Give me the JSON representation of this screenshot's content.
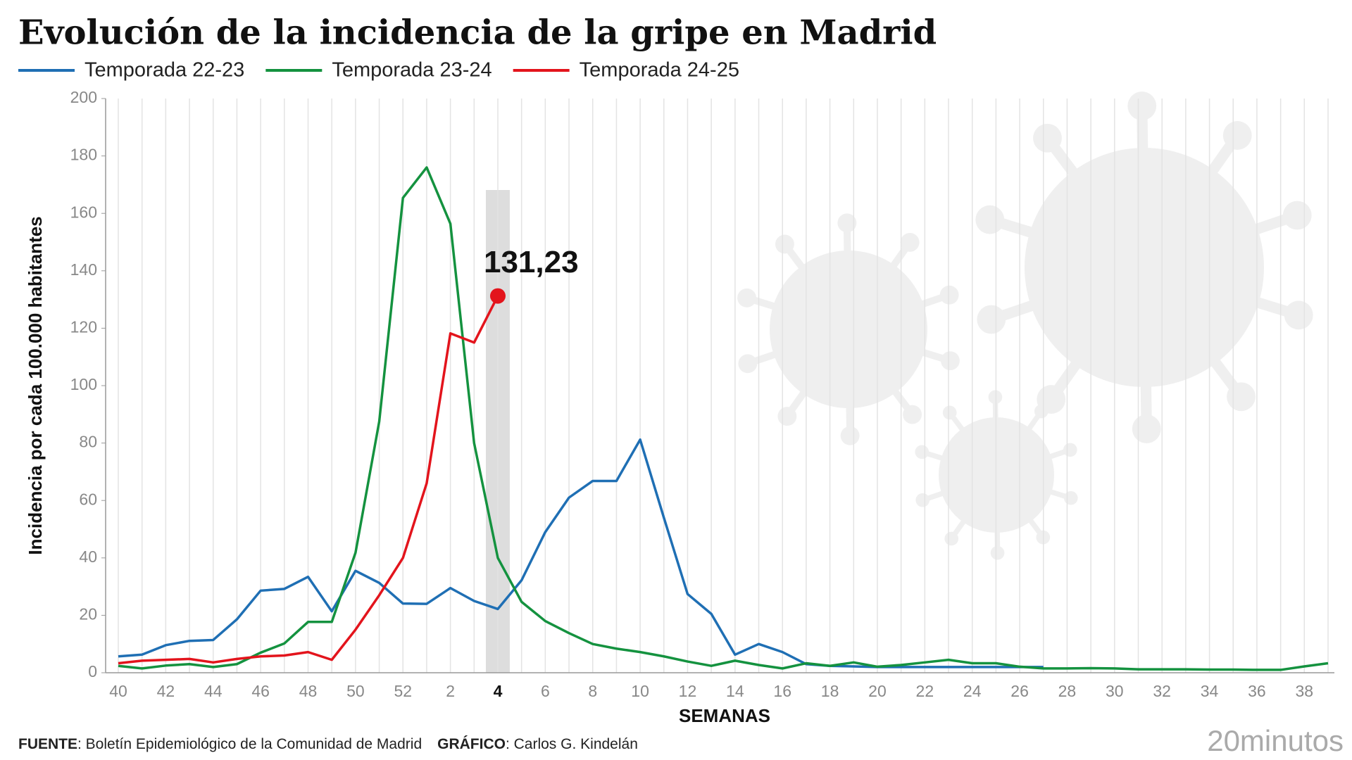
{
  "chart_data": {
    "type": "line",
    "title": "Evolución de la incidencia de la gripe en Madrid",
    "x_label": "SEMANAS",
    "y_label": "Incidencia por cada 100.000 habitantes",
    "categories": [
      "40",
      null,
      "42",
      null,
      "44",
      null,
      "46",
      null,
      "48",
      null,
      "50",
      null,
      "52",
      null,
      "2",
      null,
      "4",
      null,
      "6",
      null,
      "8",
      null,
      "10",
      null,
      "12",
      null,
      "14",
      null,
      "16",
      null,
      "18",
      null,
      "20",
      null,
      "22",
      null,
      "24",
      null,
      "26",
      null,
      "28",
      null,
      "30",
      null,
      "32",
      null,
      "34",
      null,
      "36",
      null,
      "38",
      null
    ],
    "series": [
      {
        "name": "Temporada 22-23",
        "color": "#1f6fb4",
        "values": [
          5.7,
          6.3,
          9.6,
          11.1,
          11.4,
          18.6,
          28.6,
          29.2,
          33.4,
          21.4,
          35.5,
          31.3,
          24.1,
          24,
          29.5,
          25,
          22.2,
          32.2,
          49,
          61,
          66.8,
          66.8,
          81.2,
          54,
          27.4,
          20.5,
          6.3,
          10,
          7.2,
          3,
          2.4,
          2.2,
          2,
          2,
          2,
          2,
          2,
          2,
          2,
          2,
          null,
          null,
          null,
          null,
          null,
          null,
          null,
          null,
          null,
          null,
          null,
          null
        ]
      },
      {
        "name": "Temporada 23-24",
        "color": "#14923f",
        "values": [
          2.4,
          1.5,
          2.5,
          3,
          2,
          3,
          7,
          10.2,
          17.7,
          17.7,
          41.8,
          87.5,
          165.4,
          176,
          156.4,
          80,
          40,
          24.7,
          18,
          13.8,
          10,
          8.4,
          7.2,
          5.7,
          3.9,
          2.4,
          4.2,
          2.7,
          1.5,
          3.3,
          2.4,
          3.6,
          2.1,
          2.7,
          3.6,
          4.5,
          3.3,
          3.3,
          2.1,
          1.5,
          1.5,
          1.6,
          1.5,
          1.2,
          1.2,
          1.2,
          1.1,
          1.1,
          1,
          1,
          2.2,
          3.3
        ]
      },
      {
        "name": "Temporada 24-25",
        "color": "#e3141c",
        "values": [
          3.3,
          4.2,
          4.5,
          4.8,
          3.6,
          4.8,
          5.7,
          6,
          7.2,
          4.5,
          15,
          27,
          40,
          66,
          118.2,
          115,
          131.23,
          null,
          null,
          null,
          null,
          null,
          null,
          null,
          null,
          null,
          null,
          null,
          null,
          null,
          null,
          null,
          null,
          null,
          null,
          null,
          null,
          null,
          null,
          null,
          null,
          null,
          null,
          null,
          null,
          null,
          null,
          null,
          null,
          null,
          null,
          null
        ],
        "value_labels": [
          null,
          null,
          null,
          null,
          null,
          null,
          null,
          null,
          null,
          null,
          null,
          null,
          null,
          null,
          null,
          null,
          "131,23",
          null,
          null,
          null,
          null,
          null,
          null,
          null,
          null,
          null,
          null,
          null,
          null,
          null,
          null,
          null,
          null,
          null,
          null,
          null,
          null,
          null,
          null,
          null,
          null,
          null,
          null,
          null,
          null,
          null,
          null,
          null,
          null,
          null,
          null,
          null
        ]
      }
    ],
    "ylim": [
      0,
      200
    ],
    "yticks": [
      0,
      20,
      40,
      60,
      80,
      100,
      120,
      140,
      160,
      180,
      200
    ],
    "grid": true,
    "source_label": "FUENTE",
    "source": ": Boletín Epidemiológico de la Comunidad de Madrid",
    "credit_label": "GRÁFICO",
    "credit": ": Carlos G. Kindelán",
    "logo": "20minutos"
  }
}
